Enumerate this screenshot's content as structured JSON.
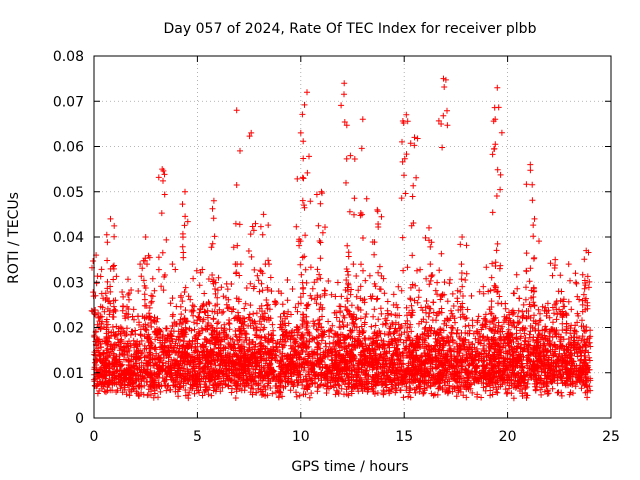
{
  "chart_data": {
    "type": "scatter",
    "title": "Day 057 of 2024, Rate Of TEC Index for receiver plbb",
    "xlabel": "GPS time / hours",
    "ylabel": "ROTI / TECUs",
    "xlim": [
      0,
      25
    ],
    "ylim": [
      0,
      0.08
    ],
    "x_ticks": [
      0,
      5,
      10,
      15,
      20,
      25
    ],
    "x_tick_labels": [
      "0",
      "5",
      "10",
      "15",
      "20",
      "25"
    ],
    "y_ticks": [
      0,
      0.01,
      0.02,
      0.03,
      0.04,
      0.05,
      0.06,
      0.07,
      0.08
    ],
    "y_tick_labels": [
      "0",
      "0.01",
      "0.02",
      "0.03",
      "0.04",
      "0.05",
      "0.06",
      "0.07",
      "0.08"
    ],
    "grid": true,
    "marker": "+",
    "marker_color": "#ff0000",
    "series": [
      {
        "name": "ROTI",
        "density_profile": {
          "x_range": [
            0,
            24
          ],
          "typical_range": [
            0.005,
            0.03
          ],
          "median": 0.012
        },
        "peaks": [
          {
            "x": 0.1,
            "y": 0.036
          },
          {
            "x": 0.8,
            "y": 0.044
          },
          {
            "x": 2.5,
            "y": 0.04
          },
          {
            "x": 3.3,
            "y": 0.055
          },
          {
            "x": 4.4,
            "y": 0.05
          },
          {
            "x": 5.8,
            "y": 0.048
          },
          {
            "x": 6.9,
            "y": 0.068
          },
          {
            "x": 7.6,
            "y": 0.063
          },
          {
            "x": 8.2,
            "y": 0.045
          },
          {
            "x": 10.0,
            "y": 0.063
          },
          {
            "x": 10.3,
            "y": 0.072
          },
          {
            "x": 11.0,
            "y": 0.05
          },
          {
            "x": 12.1,
            "y": 0.074
          },
          {
            "x": 12.4,
            "y": 0.058
          },
          {
            "x": 13.0,
            "y": 0.066
          },
          {
            "x": 13.7,
            "y": 0.046
          },
          {
            "x": 15.1,
            "y": 0.067
          },
          {
            "x": 15.5,
            "y": 0.062
          },
          {
            "x": 16.2,
            "y": 0.042
          },
          {
            "x": 16.9,
            "y": 0.075
          },
          {
            "x": 17.8,
            "y": 0.04
          },
          {
            "x": 19.5,
            "y": 0.073
          },
          {
            "x": 19.4,
            "y": 0.066
          },
          {
            "x": 21.1,
            "y": 0.056
          },
          {
            "x": 21.3,
            "y": 0.044
          },
          {
            "x": 22.3,
            "y": 0.035
          },
          {
            "x": 23.8,
            "y": 0.037
          }
        ]
      }
    ]
  }
}
